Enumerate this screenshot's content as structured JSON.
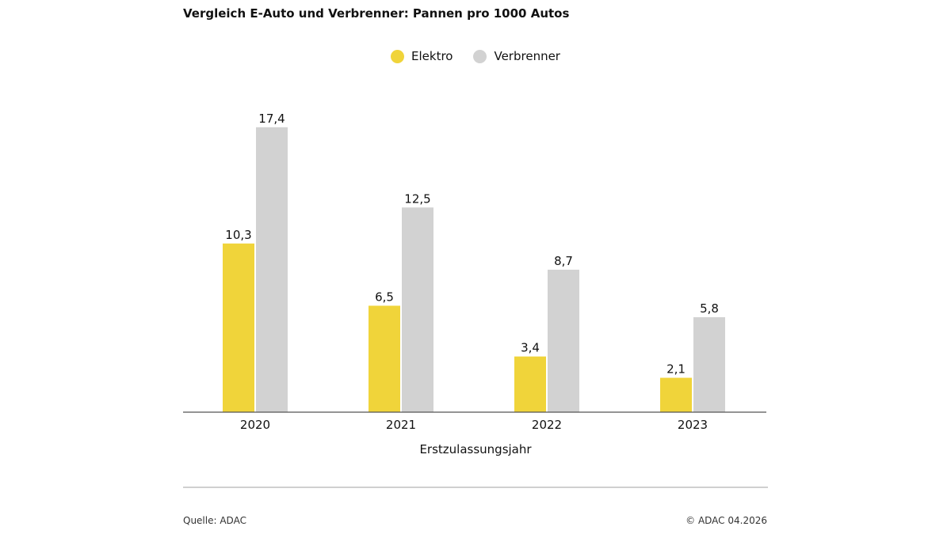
{
  "colors": {
    "elektro": "#f0d43a",
    "verbrenner": "#d2d2d2",
    "axis": "#555555"
  },
  "footer": {
    "source": "Quelle: ADAC",
    "copyright": "© ADAC 04.2026"
  },
  "chart_data": {
    "type": "bar",
    "title": "Vergleich E-Auto und Verbrenner: Pannen pro 1000 Autos",
    "xlabel": "Erstzulassungsjahr",
    "ylabel": "",
    "categories": [
      "2020",
      "2021",
      "2022",
      "2023"
    ],
    "series": [
      {
        "name": "Elektro",
        "values": [
          10.3,
          6.5,
          3.4,
          2.1
        ],
        "labels": [
          "10,3",
          "6,5",
          "3,4",
          "2,1"
        ]
      },
      {
        "name": "Verbrenner",
        "values": [
          17.4,
          12.5,
          8.7,
          5.8
        ],
        "labels": [
          "17,4",
          "12,5",
          "8,7",
          "5,8"
        ]
      }
    ],
    "ylim": [
      0,
      20
    ],
    "grid": false,
    "legend_position": "top-center"
  }
}
